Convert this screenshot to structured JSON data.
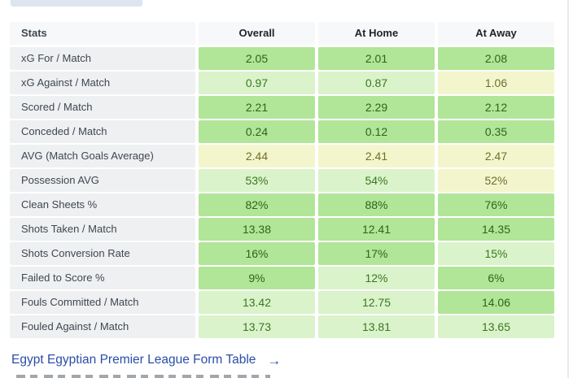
{
  "colors": {
    "green_bg": "#b1e597",
    "green_text": "#2e651b",
    "light_bg": "#daf3cb",
    "light_text": "#3b771f",
    "yellow_bg": "#f3f6cd",
    "yellow_text": "#6e6e2c",
    "label_bg": "#eef0f2",
    "link_blue": "#2a4da8",
    "tab_stub": "#dce5f0"
  },
  "table": {
    "headers": {
      "stats": "Stats",
      "overall": "Overall",
      "home": "At Home",
      "away": "At Away"
    },
    "rows": [
      {
        "label": "xG For / Match",
        "overall": "2.05",
        "home": "2.01",
        "away": "2.08",
        "tones": [
          "green",
          "green",
          "green"
        ]
      },
      {
        "label": "xG Against / Match",
        "overall": "0.97",
        "home": "0.87",
        "away": "1.06",
        "tones": [
          "light",
          "light",
          "yellow"
        ]
      },
      {
        "label": "Scored / Match",
        "overall": "2.21",
        "home": "2.29",
        "away": "2.12",
        "tones": [
          "green",
          "green",
          "green"
        ]
      },
      {
        "label": "Conceded / Match",
        "overall": "0.24",
        "home": "0.12",
        "away": "0.35",
        "tones": [
          "green",
          "green",
          "green"
        ]
      },
      {
        "label": "AVG (Match Goals Average)",
        "overall": "2.44",
        "home": "2.41",
        "away": "2.47",
        "tones": [
          "yellow",
          "yellow",
          "yellow"
        ]
      },
      {
        "label": "Possession AVG",
        "overall": "53%",
        "home": "54%",
        "away": "52%",
        "tones": [
          "light",
          "light",
          "yellow"
        ]
      },
      {
        "label": "Clean Sheets %",
        "overall": "82%",
        "home": "88%",
        "away": "76%",
        "tones": [
          "green",
          "green",
          "green"
        ]
      },
      {
        "label": "Shots Taken / Match",
        "overall": "13.38",
        "home": "12.41",
        "away": "14.35",
        "tones": [
          "green",
          "green",
          "green"
        ]
      },
      {
        "label": "Shots Conversion Rate",
        "overall": "16%",
        "home": "17%",
        "away": "15%",
        "tones": [
          "green",
          "green",
          "light"
        ]
      },
      {
        "label": "Failed to Score %",
        "overall": "9%",
        "home": "12%",
        "away": "6%",
        "tones": [
          "green",
          "light",
          "green"
        ]
      },
      {
        "label": "Fouls Committed / Match",
        "overall": "13.42",
        "home": "12.75",
        "away": "14.06",
        "tones": [
          "light",
          "light",
          "green"
        ]
      },
      {
        "label": "Fouled Against / Match",
        "overall": "13.73",
        "home": "13.81",
        "away": "13.65",
        "tones": [
          "light",
          "light",
          "light"
        ]
      }
    ]
  },
  "footer": {
    "link_label": "Egypt Egyptian Premier League Form Table",
    "arrow": "→"
  }
}
